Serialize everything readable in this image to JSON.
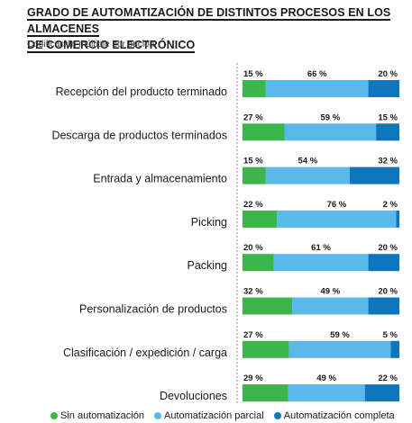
{
  "chart_data": {
    "type": "bar",
    "stacked": true,
    "orientation": "horizontal",
    "title_lines": [
      "GRADO DE AUTOMATIZACIÓN DE DISTINTOS PROCESOS EN LOS ALMACENES",
      "DE COMERCIO ELECTRÓNICO"
    ],
    "subtitle": "Codificación múltiple por opción",
    "categories": [
      "Recepción del producto terminado",
      "Descarga de productos terminados",
      "Entrada y almacenamiento",
      "Picking",
      "Packing",
      "Personalización de productos",
      "Clasificación / expedición / carga",
      "Devoluciones"
    ],
    "series": [
      {
        "name": "Sin automatización",
        "color": "#3cb54a",
        "values": [
          15,
          27,
          15,
          22,
          20,
          32,
          27,
          29
        ]
      },
      {
        "name": "Automatización parcial",
        "color": "#5bb8ea",
        "values": [
          66,
          59,
          54,
          76,
          61,
          49,
          59,
          49
        ]
      },
      {
        "name": "Automatización completa",
        "color": "#0d76bd",
        "values": [
          20,
          15,
          32,
          2,
          20,
          20,
          5,
          22
        ]
      }
    ],
    "value_suffix": " %",
    "xlim": [
      0,
      100
    ],
    "grid": false,
    "legend_position": "bottom"
  }
}
